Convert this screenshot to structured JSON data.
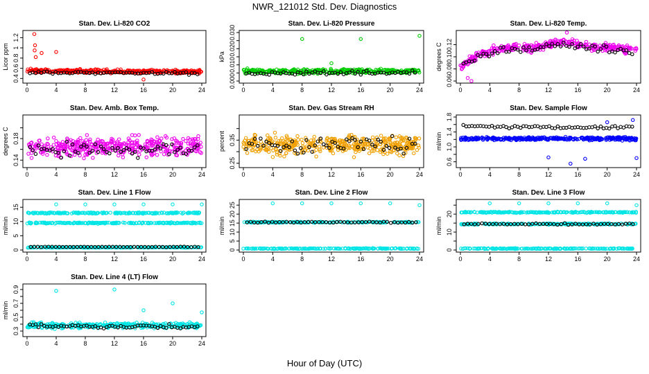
{
  "title": "NWR_121012 Std. Dev. Diagnostics",
  "x_axis_label": "Hour of Day (UTC)",
  "chart_data": [
    {
      "id": "co2",
      "type": "scatter",
      "title": "Stan. Dev. Li-820 CO2",
      "ylabel": "Licor ppm",
      "xlim": [
        0,
        24
      ],
      "ylim": [
        0.35,
        1.3
      ],
      "yticks": [
        0.4,
        0.6,
        0.8,
        1.0,
        1.2
      ],
      "color": "#ff0000",
      "pattern": "band",
      "base": [
        [
          0,
          0.55
        ],
        [
          24,
          0.53
        ]
      ],
      "spread": 0.05,
      "black_base": [
        [
          0,
          0.52
        ],
        [
          24,
          0.5
        ]
      ],
      "black_spread": 0.04,
      "outliers": [
        [
          1,
          1.27
        ],
        [
          1.1,
          1.05
        ],
        [
          1.05,
          0.95
        ],
        [
          1.2,
          0.82
        ],
        [
          2,
          0.9
        ],
        [
          4,
          0.92
        ],
        [
          16,
          0.38
        ]
      ]
    },
    {
      "id": "pressure",
      "type": "scatter",
      "title": "Stan. Dev. Li-820 Pressure",
      "ylabel": "kPa",
      "xlim": [
        0,
        24
      ],
      "ylim": [
        0,
        0.03
      ],
      "yticks": [
        0,
        0.005,
        0.01,
        0.015,
        0.02,
        0.025,
        0.03
      ],
      "ytick_labels": [
        "0.000",
        "",
        "0.010",
        "",
        "0.020",
        "",
        "0.030"
      ],
      "color": "#00cc00",
      "pattern": "band",
      "base": [
        [
          0,
          0.006
        ],
        [
          24,
          0.006
        ]
      ],
      "spread": 0.002,
      "black_base": [
        [
          0,
          0.005
        ],
        [
          24,
          0.005
        ]
      ],
      "black_spread": 0.002,
      "outliers": [
        [
          8,
          0.026
        ],
        [
          16,
          0.026
        ],
        [
          24,
          0.028
        ],
        [
          12,
          0.011
        ]
      ]
    },
    {
      "id": "temp",
      "type": "scatter",
      "title": "Stan. Dev. Li-820 Temp.",
      "ylabel": "degrees C",
      "xlim": [
        0,
        24
      ],
      "ylim": [
        0.06,
        0.14
      ],
      "yticks": [
        0.06,
        0.08,
        0.1,
        0.12
      ],
      "ytick_labels": [
        "0.06",
        "0.08",
        "0.10",
        "0.12"
      ],
      "color": "#ee00ee",
      "pattern": "hump",
      "base": [
        [
          0,
          0.085
        ],
        [
          3,
          0.105
        ],
        [
          6,
          0.115
        ],
        [
          10,
          0.115
        ],
        [
          14,
          0.125
        ],
        [
          18,
          0.115
        ],
        [
          22,
          0.115
        ],
        [
          24,
          0.11
        ]
      ],
      "spread": 0.01,
      "black_base": [
        [
          0,
          0.085
        ],
        [
          3,
          0.105
        ],
        [
          6,
          0.11
        ],
        [
          10,
          0.115
        ],
        [
          14,
          0.12
        ],
        [
          18,
          0.115
        ],
        [
          22,
          0.11
        ],
        [
          24,
          0.105
        ]
      ],
      "black_spread": 0.008,
      "outliers": [
        [
          1,
          0.065
        ],
        [
          1.5,
          0.06
        ],
        [
          14.5,
          0.14
        ]
      ]
    },
    {
      "id": "ambbox",
      "type": "scatter",
      "title": "Stan. Dev. Amb. Box Temp.",
      "ylabel": "degrees C",
      "xlim": [
        0,
        24
      ],
      "ylim": [
        0.13,
        0.22
      ],
      "yticks": [
        0.14,
        0.16,
        0.18,
        0.2
      ],
      "ytick_labels": [
        "0.14",
        "",
        "0.18",
        ""
      ],
      "color": "#ee00ee",
      "pattern": "cloud",
      "base": [
        [
          0,
          0.165
        ],
        [
          24,
          0.165
        ]
      ],
      "spread": 0.025,
      "black_base": [
        [
          0,
          0.16
        ],
        [
          24,
          0.16
        ]
      ],
      "black_spread": 0.02,
      "outliers": []
    },
    {
      "id": "rh",
      "type": "scatter",
      "title": "Stan. Dev. Gas Stream RH",
      "ylabel": "percent",
      "xlim": [
        0,
        24
      ],
      "ylim": [
        0.24,
        0.45
      ],
      "yticks": [
        0.25,
        0.3,
        0.35,
        0.4
      ],
      "ytick_labels": [
        "0.25",
        "",
        "0.35",
        ""
      ],
      "color": "#f0a000",
      "pattern": "cloud",
      "base": [
        [
          0,
          0.33
        ],
        [
          24,
          0.33
        ]
      ],
      "spread": 0.06,
      "black_base": [
        [
          0,
          0.33
        ],
        [
          24,
          0.33
        ]
      ],
      "black_spread": 0.05,
      "outliers": []
    },
    {
      "id": "sampleflow",
      "type": "scatter",
      "title": "Stan. Dev. Sample Flow",
      "ylabel": "ml/min",
      "xlim": [
        0,
        24
      ],
      "ylim": [
        0.5,
        1.8
      ],
      "yticks": [
        0.6,
        0.8,
        1.0,
        1.2,
        1.4,
        1.6,
        1.8
      ],
      "ytick_labels": [
        "0.6",
        "",
        "1.0",
        "",
        "1.4",
        "",
        "1.8"
      ],
      "color": "#0000ff",
      "pattern": "band",
      "base": [
        [
          0,
          1.22
        ],
        [
          24,
          1.22
        ]
      ],
      "spread": 0.06,
      "black_base": [
        [
          0,
          1.55
        ],
        [
          24,
          1.52
        ]
      ],
      "black_spread": 0.06,
      "outliers": [
        [
          12,
          0.72
        ],
        [
          17,
          0.68
        ],
        [
          15,
          0.55
        ],
        [
          24,
          0.7
        ],
        [
          20,
          1.66
        ],
        [
          23.5,
          1.72
        ]
      ]
    },
    {
      "id": "line1",
      "type": "scatter",
      "title": "Stan. Dev. Line 1 Flow",
      "ylabel": "ml/min",
      "xlim": [
        0,
        24
      ],
      "ylim": [
        0,
        17
      ],
      "yticks": [
        0,
        5,
        10,
        15
      ],
      "color": "#00e5e5",
      "pattern": "multi",
      "bands": [
        [
          13,
          0.3
        ],
        [
          9.5,
          0.3
        ],
        [
          0.9,
          0.15
        ]
      ],
      "black_bands": [
        [
          1.1,
          0.15
        ]
      ],
      "outliers": [
        [
          4,
          16
        ],
        [
          8,
          16
        ],
        [
          12,
          16
        ],
        [
          16,
          16
        ],
        [
          20,
          16
        ],
        [
          24,
          16
        ]
      ]
    },
    {
      "id": "line2",
      "type": "scatter",
      "title": "Stan. Dev. Line 2 Flow",
      "ylabel": "ml/min",
      "xlim": [
        0,
        24
      ],
      "ylim": [
        0,
        27
      ],
      "yticks": [
        0,
        5,
        10,
        15,
        20,
        25
      ],
      "color": "#00e5e5",
      "pattern": "multi",
      "bands": [
        [
          15.5,
          0.4
        ],
        [
          0.8,
          0.3
        ]
      ],
      "black_bands": [
        [
          15.5,
          0.5
        ]
      ],
      "outliers": [
        [
          4,
          26
        ],
        [
          8,
          26
        ],
        [
          12,
          26
        ],
        [
          16,
          26
        ],
        [
          20,
          26
        ],
        [
          24,
          25
        ]
      ]
    },
    {
      "id": "line3",
      "type": "scatter",
      "title": "Stan. Dev. Line 3 Flow",
      "ylabel": "ml/min",
      "xlim": [
        0,
        24
      ],
      "ylim": [
        0,
        27
      ],
      "yticks": [
        0,
        5,
        10,
        15,
        20,
        25
      ],
      "ytick_labels": [
        "0",
        "",
        "10",
        "",
        "20",
        ""
      ],
      "color": "#00e5e5",
      "pattern": "multi",
      "bands": [
        [
          21,
          0.4
        ],
        [
          14.5,
          0.5
        ],
        [
          0.8,
          0.3
        ]
      ],
      "black_bands": [
        [
          14.5,
          0.6
        ]
      ],
      "outliers": [
        [
          4,
          26
        ],
        [
          8,
          26
        ],
        [
          12,
          26
        ],
        [
          16,
          26
        ],
        [
          20,
          26
        ],
        [
          24,
          25
        ]
      ]
    },
    {
      "id": "line4",
      "type": "scatter",
      "title": "Stan. Dev. Line 4 (LT) Flow",
      "ylabel": "ml/min",
      "xlim": [
        0,
        24
      ],
      "ylim": [
        0.25,
        0.95
      ],
      "yticks": [
        0.3,
        0.4,
        0.5,
        0.6,
        0.7,
        0.8,
        0.9
      ],
      "ytick_labels": [
        "0.3",
        "",
        "0.5",
        "",
        "0.7",
        "",
        "0.9"
      ],
      "color": "#00e5e5",
      "pattern": "band",
      "base": [
        [
          0,
          0.38
        ],
        [
          24,
          0.38
        ]
      ],
      "spread": 0.06,
      "black_base": [
        [
          0,
          0.37
        ],
        [
          24,
          0.36
        ]
      ],
      "black_spread": 0.05,
      "outliers": [
        [
          4,
          0.88
        ],
        [
          12,
          0.9
        ],
        [
          16,
          0.6
        ],
        [
          20,
          0.7
        ],
        [
          24,
          0.57
        ]
      ]
    }
  ],
  "xticks": [
    0,
    4,
    8,
    12,
    16,
    20,
    24
  ]
}
